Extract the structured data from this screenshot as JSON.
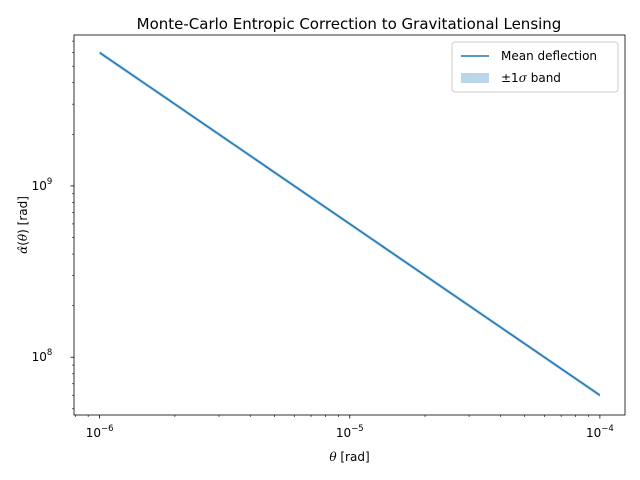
{
  "chart_data": {
    "type": "line",
    "title": "Monte-Carlo Entropic Correction to Gravitational Lensing",
    "xlabel": "θ [rad]",
    "ylabel": "α̂(θ) [rad]",
    "xscale": "log",
    "yscale": "log",
    "xlim": [
      7.9e-07,
      0.000126
    ],
    "ylim": [
      46000000.0,
      7600000000.0
    ],
    "x_ticks": [
      {
        "value": 1e-06,
        "base": "10",
        "exp": "−6"
      },
      {
        "value": 1e-05,
        "base": "10",
        "exp": "−5"
      },
      {
        "value": 0.0001,
        "base": "10",
        "exp": "−4"
      }
    ],
    "y_ticks": [
      {
        "value": 100000000.0,
        "base": "10",
        "exp": "8"
      },
      {
        "value": 1000000000.0,
        "base": "10",
        "exp": "9"
      }
    ],
    "grid": false,
    "legend_position": "top-right",
    "series": [
      {
        "name": "Mean deflection",
        "kind": "line",
        "color": "#1f77b4",
        "x": [
          1e-06,
          2e-06,
          5e-06,
          1e-05,
          2e-05,
          5e-05,
          0.0001
        ],
        "y": [
          6000000000.0,
          3000000000.0,
          1200000000.0,
          600000000.0,
          300000000.0,
          120000000.0,
          60000000.0
        ]
      },
      {
        "name": "±1σ band",
        "kind": "band",
        "color": "#1f77b4",
        "opacity": 0.3,
        "x": [
          1e-06,
          2e-06,
          5e-06,
          1e-05,
          2e-05,
          5e-05,
          0.0001
        ],
        "lower": [
          5850000000.0,
          2925000000.0,
          1170000000.0,
          585000000.0,
          292500000.0,
          117000000.0,
          58500000.0
        ],
        "upper": [
          6150000000.0,
          3075000000.0,
          1230000000.0,
          615000000.0,
          307500000.0,
          123000000.0,
          61500000.0
        ]
      }
    ],
    "legend": {
      "line_label": "Mean deflection",
      "band_label_prefix": "±1",
      "band_label_sigma": "σ",
      "band_label_suffix": " band"
    }
  }
}
